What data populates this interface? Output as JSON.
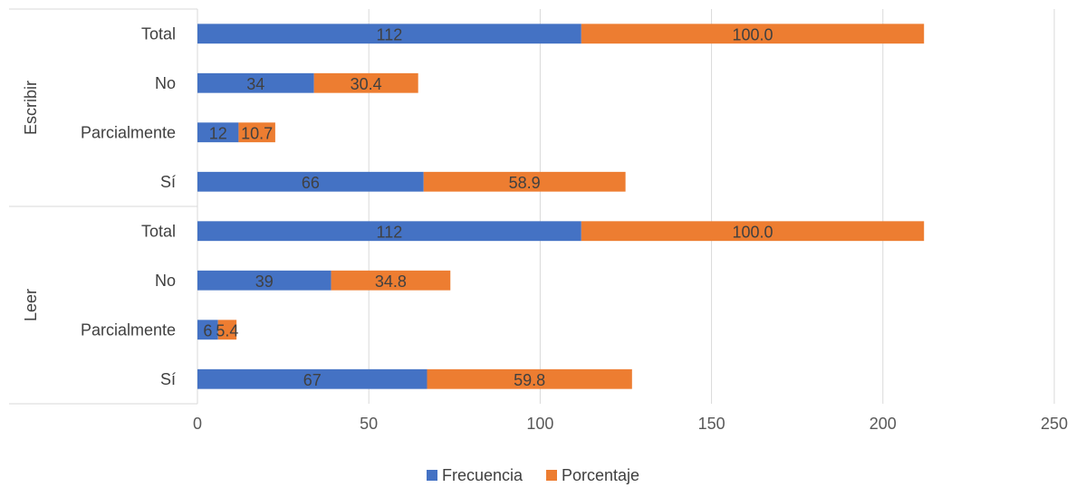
{
  "chart_data": {
    "type": "bar",
    "orientation": "horizontal",
    "stacked": true,
    "title": "",
    "xlabel": "",
    "ylabel": "",
    "xlim": [
      0,
      250
    ],
    "x_ticks": [
      0,
      50,
      100,
      150,
      200,
      250
    ],
    "grid": true,
    "legend_position": "bottom",
    "groups": [
      {
        "name": "Escribir",
        "categories": [
          "Total",
          "No",
          "Parcialmente",
          "Sí"
        ]
      },
      {
        "name": "Leer",
        "categories": [
          "Total",
          "No",
          "Parcialmente",
          "Sí"
        ]
      }
    ],
    "series": [
      {
        "name": "Frecuencia",
        "color": "#4472C4",
        "values": [
          112,
          34,
          12,
          66,
          112,
          39,
          6,
          67
        ],
        "labels": [
          "112",
          "34",
          "12",
          "66",
          "112",
          "39",
          "6",
          "67"
        ]
      },
      {
        "name": "Porcentaje",
        "color": "#ED7D31",
        "values": [
          100.0,
          30.4,
          10.7,
          58.9,
          100.0,
          34.8,
          5.4,
          59.8
        ],
        "labels": [
          "100.0",
          "30.4",
          "10.7",
          "58.9",
          "100.0",
          "34.8",
          "5.4",
          "59.8"
        ]
      }
    ]
  }
}
